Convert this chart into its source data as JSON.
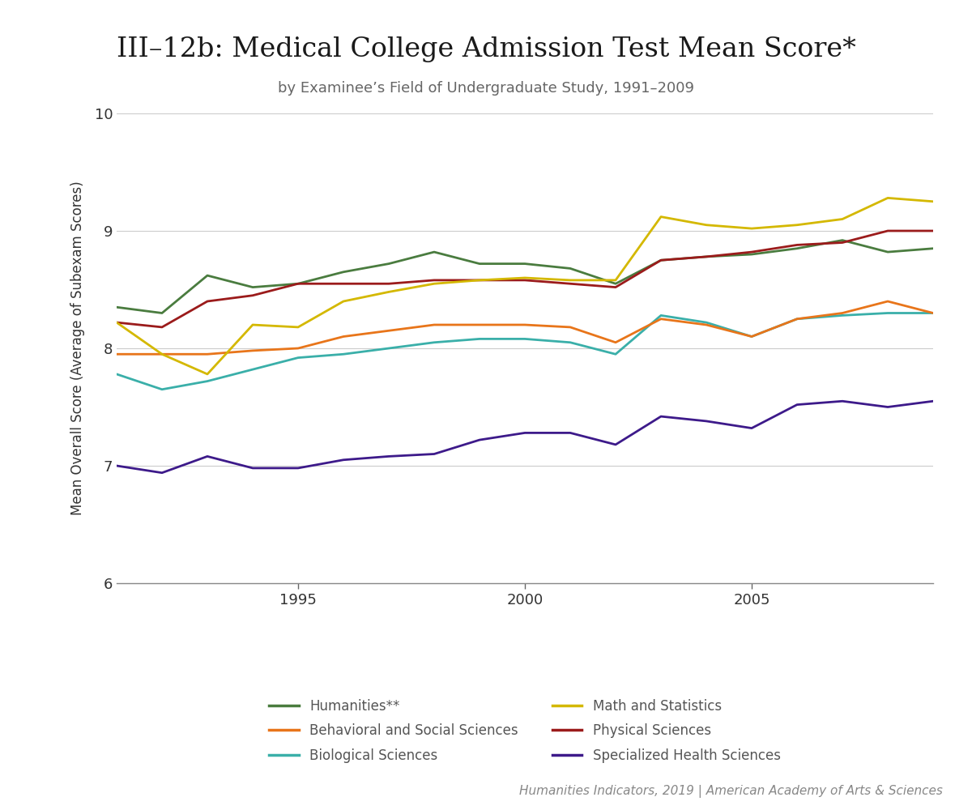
{
  "title": "III–12b: Medical College Admission Test Mean Score*",
  "subtitle": "by Examinee’s Field of Undergraduate Study, 1991–2009",
  "ylabel": "Mean Overall Score (Average of Subexam Scores)",
  "source": "Humanities Indicators, 2019 | American Academy of Arts & Sciences",
  "years": [
    1991,
    1992,
    1993,
    1994,
    1995,
    1996,
    1997,
    1998,
    1999,
    2000,
    2001,
    2002,
    2003,
    2004,
    2005,
    2006,
    2007,
    2008,
    2009
  ],
  "series_order": [
    "Humanities**",
    "Biological Sciences",
    "Physical Sciences",
    "Behavioral and Social Sciences",
    "Math and Statistics",
    "Specialized Health Sciences"
  ],
  "series": {
    "Humanities**": {
      "color": "#4a7c3f",
      "data": [
        8.35,
        8.3,
        8.62,
        8.52,
        8.55,
        8.65,
        8.72,
        8.82,
        8.72,
        8.72,
        8.68,
        8.55,
        8.75,
        8.78,
        8.8,
        8.85,
        8.92,
        8.82,
        8.85
      ]
    },
    "Behavioral and Social Sciences": {
      "color": "#e8751a",
      "data": [
        7.95,
        7.95,
        7.95,
        7.98,
        8.0,
        8.1,
        8.15,
        8.2,
        8.2,
        8.2,
        8.18,
        8.05,
        8.25,
        8.2,
        8.1,
        8.25,
        8.3,
        8.4,
        8.3
      ]
    },
    "Biological Sciences": {
      "color": "#3aafa9",
      "data": [
        7.78,
        7.65,
        7.72,
        7.82,
        7.92,
        7.95,
        8.0,
        8.05,
        8.08,
        8.08,
        8.05,
        7.95,
        8.28,
        8.22,
        8.1,
        8.25,
        8.28,
        8.3,
        8.3
      ]
    },
    "Math and Statistics": {
      "color": "#d4b800",
      "data": [
        8.22,
        7.95,
        7.78,
        8.2,
        8.18,
        8.4,
        8.48,
        8.55,
        8.58,
        8.6,
        8.58,
        8.58,
        9.12,
        9.05,
        9.02,
        9.05,
        9.1,
        9.28,
        9.25
      ]
    },
    "Physical Sciences": {
      "color": "#9b1b1b",
      "data": [
        8.22,
        8.18,
        8.4,
        8.45,
        8.55,
        8.55,
        8.55,
        8.58,
        8.58,
        8.58,
        8.55,
        8.52,
        8.75,
        8.78,
        8.82,
        8.88,
        8.9,
        9.0,
        9.0
      ]
    },
    "Specialized Health Sciences": {
      "color": "#3d1a8a",
      "data": [
        7.0,
        6.94,
        7.08,
        6.98,
        6.98,
        7.05,
        7.08,
        7.1,
        7.22,
        7.28,
        7.28,
        7.18,
        7.42,
        7.38,
        7.32,
        7.52,
        7.55,
        7.5,
        7.55
      ]
    }
  },
  "legend_order": [
    "Humanities**",
    "Behavioral and Social Sciences",
    "Biological Sciences",
    "Math and Statistics",
    "Physical Sciences",
    "Specialized Health Sciences"
  ],
  "ylim": [
    6,
    10
  ],
  "yticks": [
    6,
    7,
    8,
    9,
    10
  ],
  "xticks": [
    1995,
    2000,
    2005
  ],
  "background_color": "#ffffff",
  "plot_bg_color": "#ffffff",
  "grid_color": "#cccccc",
  "title_fontsize": 24,
  "subtitle_fontsize": 13,
  "axis_label_fontsize": 12,
  "tick_fontsize": 13,
  "legend_fontsize": 12,
  "source_fontsize": 11
}
